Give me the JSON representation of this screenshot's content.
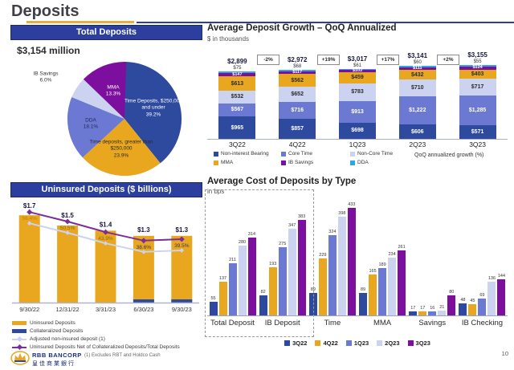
{
  "page": {
    "title": "Deposits",
    "page_number": "10",
    "footnote": "(1)  Excludes RBT and Holdco Cash",
    "logo_name": "RBB BANCORP",
    "logo_chinese": "皇佳商業銀行"
  },
  "left": {
    "total_header": "Total Deposits",
    "total_amount": "$3,154 million",
    "uninsured_header": "Uninsured Deposits ($ billions)"
  },
  "right": {
    "growth_title": "Average Deposit Growth – QoQ Annualized",
    "growth_subtitle": "$ in thousands",
    "growth_note": "QoQ annualized growth (%)",
    "cost_title": "Average Cost of Deposits by Type",
    "cost_subtitle": "in bps"
  },
  "chart_data": [
    {
      "id": "total-deposits-pie",
      "type": "pie",
      "title": "Total Deposits",
      "total_label": "$3,154 million",
      "slices": [
        {
          "label": "Time Deposits, $250,000 and under",
          "pct": 39.2,
          "color": "#2e4a9e",
          "text": "#ffffff"
        },
        {
          "label": "Time deposits, greater than $250,000",
          "pct": 23.9,
          "color": "#e8a71f",
          "text": "#2b2b2b"
        },
        {
          "label": "DDA",
          "pct": 18.1,
          "color": "#6b79d3",
          "text": "#1d2a5e"
        },
        {
          "label": "IB Savings",
          "pct": 6.0,
          "color": "#ccd3f0",
          "text": "#333333"
        },
        {
          "label": "MMA",
          "pct": 13.3,
          "color": "#7d0f9e",
          "text": "#ffffff"
        }
      ]
    },
    {
      "id": "deposit-growth",
      "type": "bar",
      "subtype": "stacked",
      "title": "Average Deposit Growth – QoQ Annualized",
      "unit": "$ in thousands",
      "categories": [
        "3Q22",
        "4Q22",
        "1Q23",
        "2Q23",
        "3Q23"
      ],
      "totals": [
        2899,
        2972,
        3017,
        3141,
        3155
      ],
      "qoq_growth": [
        "-2%",
        "+19%",
        "+17%",
        "+2%"
      ],
      "series": [
        {
          "name": "Non-interest Bearing",
          "color": "#2e4a9e",
          "text": "#ffffff",
          "values": [
            965,
            857,
            698,
            606,
            571
          ]
        },
        {
          "name": "Core Time",
          "color": "#6b79d3",
          "text": "#ffffff",
          "values": [
            567,
            716,
            913,
            1222,
            1285
          ]
        },
        {
          "name": "Non-Core Time",
          "color": "#ccd3f0",
          "text": "#2b2b2b",
          "values": [
            532,
            652,
            783,
            710,
            717
          ]
        },
        {
          "name": "MMA",
          "color": "#e8a71f",
          "text": "#2b2b2b",
          "values": [
            613,
            562,
            459,
            432,
            403
          ]
        },
        {
          "name": "IB Savings",
          "color": "#7d0f9e",
          "text": "#ffffff",
          "values": [
            147,
            117,
            103,
            111,
            124
          ]
        },
        {
          "name": "DDA",
          "color": "#2da7e0",
          "text": "#2b2b2b",
          "values": [
            75,
            68,
            61,
            60,
            55
          ]
        }
      ]
    },
    {
      "id": "uninsured-deposits",
      "type": "bar",
      "subtype": "bar-line-combo",
      "title": "Uninsured Deposits ($ billions)",
      "categories": [
        "9/30/22",
        "12/31/22",
        "3/31/23",
        "6/30/23",
        "9/30/23"
      ],
      "bars": {
        "name": "Uninsured Deposits",
        "color": "#e8a71f",
        "values": [
          1.7,
          1.5,
          1.4,
          1.3,
          1.3
        ]
      },
      "collateralized": {
        "name": "Collateralized Deposits",
        "color": "#2e4a9e",
        "shown_on_index": [
          3,
          4
        ]
      },
      "line_pct": {
        "name": "Uninsured Deposits Net of Collateralized Deposits/Total Deposits",
        "color": "#7b2f96",
        "values": [
          56.4,
          50.5,
          43.9,
          38.6,
          39.5
        ]
      },
      "line_adjusted": {
        "name": "Adjusted non-insured deposit (1)",
        "color": "#ccd3f0"
      },
      "legend": [
        {
          "label": "Uninsured Deposits",
          "swatch": "bar",
          "color": "#e8a71f"
        },
        {
          "label": "Collateralized Deposits",
          "swatch": "bar",
          "color": "#2e4a9e"
        },
        {
          "label": "Adjusted non-insured deposit (1)",
          "swatch": "line-diamond",
          "color": "#ccd3f0"
        },
        {
          "label": "Uninsured Deposits Net of Collateralized Deposits/Total Deposits",
          "swatch": "line-diamond",
          "color": "#7b2f96"
        }
      ]
    },
    {
      "id": "cost-of-deposits",
      "type": "bar",
      "subtype": "grouped",
      "title": "Average Cost of Deposits by Type",
      "unit": "in bps",
      "groups": [
        "Total Deposit",
        "IB Deposit",
        "Time",
        "MMA",
        "Savings",
        "IB Checking"
      ],
      "dashed_box_groups": [
        "Total Deposit",
        "IB Deposit"
      ],
      "series": [
        {
          "name": "3Q22",
          "color": "#2e4a9e",
          "values": [
            55,
            82,
            89,
            89,
            17,
            48
          ]
        },
        {
          "name": "4Q22",
          "color": "#e8a71f",
          "values": [
            137,
            193,
            229,
            165,
            17,
            45
          ]
        },
        {
          "name": "1Q23",
          "color": "#6b79d3",
          "values": [
            211,
            275,
            324,
            189,
            16,
            69
          ]
        },
        {
          "name": "2Q23",
          "color": "#ccd3f0",
          "values": [
            280,
            347,
            398,
            234,
            21,
            136
          ]
        },
        {
          "name": "3Q23",
          "color": "#7d0f9e",
          "values": [
            314,
            383,
            433,
            261,
            80,
            144
          ]
        }
      ]
    }
  ]
}
